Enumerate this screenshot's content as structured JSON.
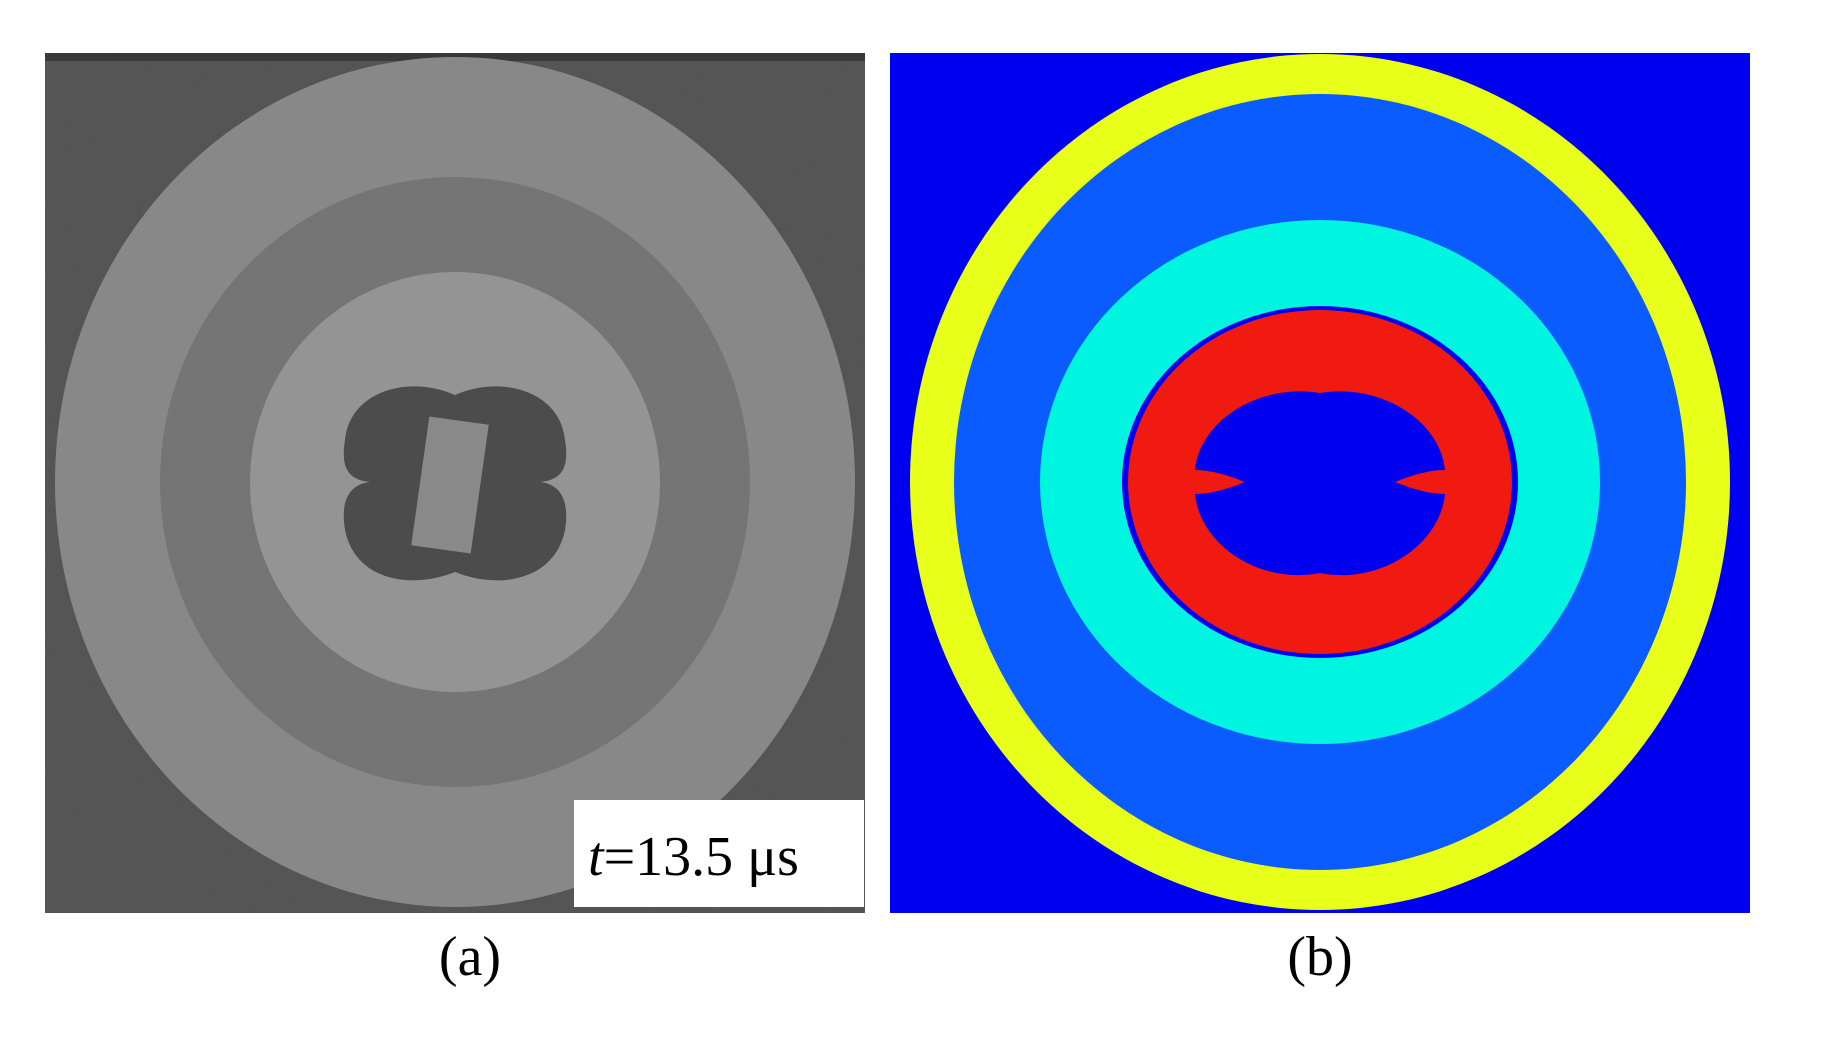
{
  "panels": [
    {
      "label": "(a)",
      "annotation": {
        "variable": "t",
        "text": "=13.5 μs"
      }
    },
    {
      "label": "(b)"
    }
  ]
}
